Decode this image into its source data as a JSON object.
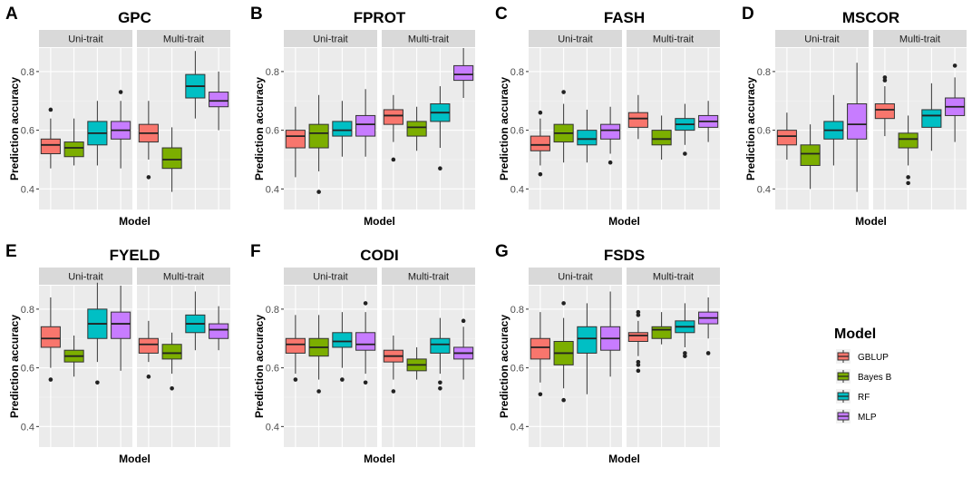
{
  "chart_data": {
    "type": "boxplot",
    "facets": [
      "Uni-trait",
      "Multi-trait"
    ],
    "models": [
      "GBLUP",
      "Bayes B",
      "RF",
      "MLP"
    ],
    "colors": {
      "GBLUP": "#F8766D",
      "Bayes B": "#7CAE00",
      "RF": "#00BFC4",
      "MLP": "#C77CFF"
    },
    "ylabel": "Prediction accuracy",
    "xlabel": "Model",
    "ylim": [
      0.33,
      0.88
    ],
    "yticks": [
      "0.4",
      "0.6",
      "0.8"
    ],
    "legend": {
      "title": "Model",
      "position": "right"
    },
    "panels": [
      {
        "letter": "A",
        "title": "GPC",
        "boxes": {
          "Uni-trait": [
            {
              "min": 0.47,
              "q1": 0.52,
              "med": 0.55,
              "q3": 0.57,
              "max": 0.64,
              "outliers": [
                0.67
              ]
            },
            {
              "min": 0.48,
              "q1": 0.51,
              "med": 0.54,
              "q3": 0.56,
              "max": 0.64,
              "outliers": []
            },
            {
              "min": 0.48,
              "q1": 0.55,
              "med": 0.59,
              "q3": 0.63,
              "max": 0.7,
              "outliers": []
            },
            {
              "min": 0.47,
              "q1": 0.57,
              "med": 0.6,
              "q3": 0.63,
              "max": 0.7,
              "outliers": [
                0.73
              ]
            }
          ],
          "Multi-trait": [
            {
              "min": 0.5,
              "q1": 0.56,
              "med": 0.59,
              "q3": 0.62,
              "max": 0.7,
              "outliers": [
                0.44
              ]
            },
            {
              "min": 0.39,
              "q1": 0.47,
              "med": 0.5,
              "q3": 0.54,
              "max": 0.61,
              "outliers": []
            },
            {
              "min": 0.64,
              "q1": 0.71,
              "med": 0.75,
              "q3": 0.79,
              "max": 0.87,
              "outliers": []
            },
            {
              "min": 0.6,
              "q1": 0.68,
              "med": 0.7,
              "q3": 0.73,
              "max": 0.8,
              "outliers": []
            }
          ]
        }
      },
      {
        "letter": "B",
        "title": "FPROT",
        "boxes": {
          "Uni-trait": [
            {
              "min": 0.44,
              "q1": 0.54,
              "med": 0.58,
              "q3": 0.6,
              "max": 0.68,
              "outliers": []
            },
            {
              "min": 0.46,
              "q1": 0.54,
              "med": 0.59,
              "q3": 0.62,
              "max": 0.72,
              "outliers": [
                0.39
              ]
            },
            {
              "min": 0.51,
              "q1": 0.58,
              "med": 0.6,
              "q3": 0.63,
              "max": 0.7,
              "outliers": []
            },
            {
              "min": 0.51,
              "q1": 0.58,
              "med": 0.62,
              "q3": 0.65,
              "max": 0.74,
              "outliers": []
            }
          ],
          "Multi-trait": [
            {
              "min": 0.56,
              "q1": 0.62,
              "med": 0.65,
              "q3": 0.67,
              "max": 0.72,
              "outliers": [
                0.5
              ]
            },
            {
              "min": 0.53,
              "q1": 0.58,
              "med": 0.61,
              "q3": 0.63,
              "max": 0.68,
              "outliers": []
            },
            {
              "min": 0.54,
              "q1": 0.63,
              "med": 0.66,
              "q3": 0.69,
              "max": 0.75,
              "outliers": [
                0.47
              ]
            },
            {
              "min": 0.71,
              "q1": 0.77,
              "med": 0.79,
              "q3": 0.82,
              "max": 0.88,
              "outliers": []
            }
          ]
        }
      },
      {
        "letter": "C",
        "title": "FASH",
        "boxes": {
          "Uni-trait": [
            {
              "min": 0.48,
              "q1": 0.53,
              "med": 0.55,
              "q3": 0.58,
              "max": 0.64,
              "outliers": [
                0.66,
                0.45
              ]
            },
            {
              "min": 0.49,
              "q1": 0.56,
              "med": 0.59,
              "q3": 0.62,
              "max": 0.69,
              "outliers": [
                0.73
              ]
            },
            {
              "min": 0.49,
              "q1": 0.55,
              "med": 0.57,
              "q3": 0.6,
              "max": 0.67,
              "outliers": []
            },
            {
              "min": 0.52,
              "q1": 0.57,
              "med": 0.6,
              "q3": 0.62,
              "max": 0.68,
              "outliers": [
                0.49
              ]
            }
          ],
          "Multi-trait": [
            {
              "min": 0.57,
              "q1": 0.61,
              "med": 0.64,
              "q3": 0.66,
              "max": 0.72,
              "outliers": []
            },
            {
              "min": 0.5,
              "q1": 0.55,
              "med": 0.57,
              "q3": 0.6,
              "max": 0.65,
              "outliers": []
            },
            {
              "min": 0.55,
              "q1": 0.6,
              "med": 0.62,
              "q3": 0.64,
              "max": 0.69,
              "outliers": [
                0.52
              ]
            },
            {
              "min": 0.56,
              "q1": 0.61,
              "med": 0.63,
              "q3": 0.65,
              "max": 0.7,
              "outliers": []
            }
          ]
        }
      },
      {
        "letter": "D",
        "title": "MSCOR",
        "boxes": {
          "Uni-trait": [
            {
              "min": 0.5,
              "q1": 0.55,
              "med": 0.58,
              "q3": 0.6,
              "max": 0.66,
              "outliers": []
            },
            {
              "min": 0.4,
              "q1": 0.48,
              "med": 0.52,
              "q3": 0.55,
              "max": 0.62,
              "outliers": []
            },
            {
              "min": 0.48,
              "q1": 0.57,
              "med": 0.6,
              "q3": 0.63,
              "max": 0.72,
              "outliers": []
            },
            {
              "min": 0.39,
              "q1": 0.57,
              "med": 0.62,
              "q3": 0.69,
              "max": 0.83,
              "outliers": []
            }
          ],
          "Multi-trait": [
            {
              "min": 0.58,
              "q1": 0.64,
              "med": 0.67,
              "q3": 0.69,
              "max": 0.75,
              "outliers": [
                0.78,
                0.77
              ]
            },
            {
              "min": 0.48,
              "q1": 0.54,
              "med": 0.57,
              "q3": 0.59,
              "max": 0.65,
              "outliers": [
                0.44,
                0.42
              ]
            },
            {
              "min": 0.53,
              "q1": 0.61,
              "med": 0.65,
              "q3": 0.67,
              "max": 0.76,
              "outliers": []
            },
            {
              "min": 0.56,
              "q1": 0.65,
              "med": 0.68,
              "q3": 0.71,
              "max": 0.78,
              "outliers": [
                0.82
              ]
            }
          ]
        }
      },
      {
        "letter": "E",
        "title": "FYELD",
        "boxes": {
          "Uni-trait": [
            {
              "min": 0.6,
              "q1": 0.67,
              "med": 0.7,
              "q3": 0.74,
              "max": 0.84,
              "outliers": [
                0.56
              ]
            },
            {
              "min": 0.57,
              "q1": 0.62,
              "med": 0.64,
              "q3": 0.66,
              "max": 0.71,
              "outliers": []
            },
            {
              "min": 0.62,
              "q1": 0.7,
              "med": 0.75,
              "q3": 0.8,
              "max": 0.89,
              "outliers": [
                0.55
              ]
            },
            {
              "min": 0.59,
              "q1": 0.7,
              "med": 0.75,
              "q3": 0.79,
              "max": 0.88,
              "outliers": []
            }
          ],
          "Multi-trait": [
            {
              "min": 0.62,
              "q1": 0.65,
              "med": 0.68,
              "q3": 0.7,
              "max": 0.76,
              "outliers": [
                0.57
              ]
            },
            {
              "min": 0.58,
              "q1": 0.63,
              "med": 0.65,
              "q3": 0.68,
              "max": 0.72,
              "outliers": [
                0.53
              ]
            },
            {
              "min": 0.66,
              "q1": 0.72,
              "med": 0.75,
              "q3": 0.78,
              "max": 0.86,
              "outliers": []
            },
            {
              "min": 0.66,
              "q1": 0.7,
              "med": 0.73,
              "q3": 0.75,
              "max": 0.81,
              "outliers": []
            }
          ]
        }
      },
      {
        "letter": "F",
        "title": "CODI",
        "boxes": {
          "Uni-trait": [
            {
              "min": 0.58,
              "q1": 0.65,
              "med": 0.68,
              "q3": 0.7,
              "max": 0.78,
              "outliers": [
                0.56
              ]
            },
            {
              "min": 0.56,
              "q1": 0.64,
              "med": 0.67,
              "q3": 0.7,
              "max": 0.78,
              "outliers": [
                0.52
              ]
            },
            {
              "min": 0.6,
              "q1": 0.67,
              "med": 0.69,
              "q3": 0.72,
              "max": 0.79,
              "outliers": [
                0.56
              ]
            },
            {
              "min": 0.58,
              "q1": 0.66,
              "med": 0.68,
              "q3": 0.72,
              "max": 0.79,
              "outliers": [
                0.82,
                0.55
              ]
            }
          ],
          "Multi-trait": [
            {
              "min": 0.56,
              "q1": 0.62,
              "med": 0.64,
              "q3": 0.66,
              "max": 0.71,
              "outliers": [
                0.52
              ]
            },
            {
              "min": 0.56,
              "q1": 0.59,
              "med": 0.61,
              "q3": 0.63,
              "max": 0.67,
              "outliers": []
            },
            {
              "min": 0.58,
              "q1": 0.65,
              "med": 0.68,
              "q3": 0.7,
              "max": 0.77,
              "outliers": [
                0.55,
                0.53
              ]
            },
            {
              "min": 0.56,
              "q1": 0.63,
              "med": 0.65,
              "q3": 0.67,
              "max": 0.74,
              "outliers": [
                0.76
              ]
            }
          ]
        }
      },
      {
        "letter": "G",
        "title": "FSDS",
        "boxes": {
          "Uni-trait": [
            {
              "min": 0.55,
              "q1": 0.63,
              "med": 0.67,
              "q3": 0.7,
              "max": 0.79,
              "outliers": [
                0.51
              ]
            },
            {
              "min": 0.53,
              "q1": 0.61,
              "med": 0.65,
              "q3": 0.69,
              "max": 0.77,
              "outliers": [
                0.82,
                0.49
              ]
            },
            {
              "min": 0.51,
              "q1": 0.65,
              "med": 0.7,
              "q3": 0.74,
              "max": 0.82,
              "outliers": []
            },
            {
              "min": 0.57,
              "q1": 0.66,
              "med": 0.7,
              "q3": 0.74,
              "max": 0.86,
              "outliers": []
            }
          ],
          "Multi-trait": [
            {
              "min": 0.64,
              "q1": 0.69,
              "med": 0.71,
              "q3": 0.72,
              "max": 0.76,
              "outliers": [
                0.79,
                0.78,
                0.62,
                0.61,
                0.59
              ]
            },
            {
              "min": 0.68,
              "q1": 0.7,
              "med": 0.73,
              "q3": 0.74,
              "max": 0.79,
              "outliers": []
            },
            {
              "min": 0.67,
              "q1": 0.72,
              "med": 0.74,
              "q3": 0.76,
              "max": 0.82,
              "outliers": [
                0.65,
                0.64
              ]
            },
            {
              "min": 0.7,
              "q1": 0.75,
              "med": 0.77,
              "q3": 0.79,
              "max": 0.84,
              "outliers": [
                0.65
              ]
            }
          ]
        }
      }
    ]
  }
}
